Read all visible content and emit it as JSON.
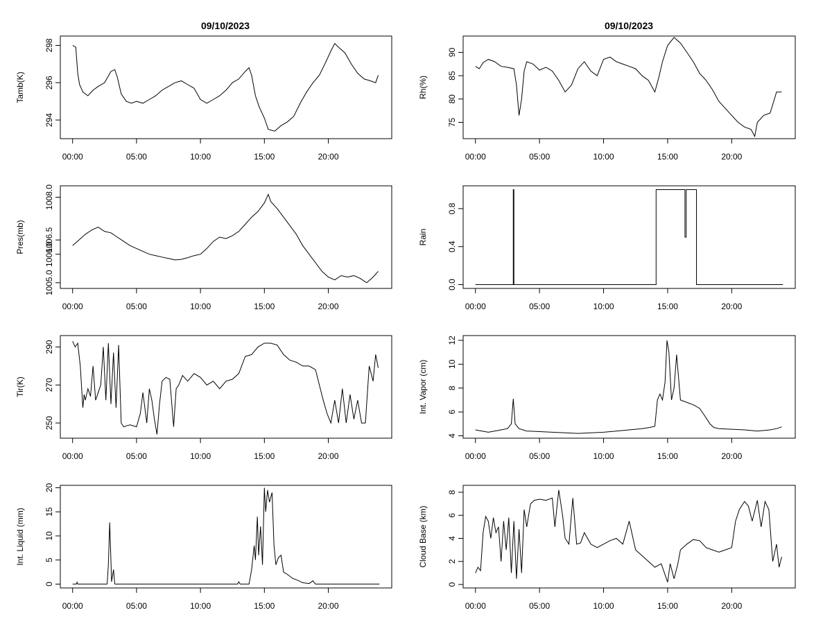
{
  "chart_data": [
    {
      "type": "line",
      "title": "09/10/2023",
      "ylabel": "Tamb(K)",
      "xlim": [
        0,
        24
      ],
      "ylim": [
        293,
        298.5
      ],
      "x_ticks": [
        "00:00",
        "05:00",
        "10:00",
        "15:00",
        "20:00"
      ],
      "y_ticks": [
        "294",
        "296",
        "298"
      ],
      "series": [
        {
          "x": [
            0.0,
            0.25,
            0.4,
            0.55,
            0.8,
            1.2,
            1.6,
            2.0,
            2.5,
            3.0,
            3.3,
            3.5,
            3.8,
            4.2,
            4.6,
            5.0,
            5.5,
            6.0,
            6.5,
            7.0,
            7.5,
            8.0,
            8.5,
            9.0,
            9.5,
            10.0,
            10.5,
            11.0,
            11.5,
            12.0,
            12.5,
            13.0,
            13.5,
            13.8,
            14.0,
            14.3,
            14.6,
            15.0,
            15.3,
            15.8,
            16.3,
            16.8,
            17.3,
            17.8,
            18.3,
            18.8,
            19.3,
            19.8,
            20.2,
            20.5,
            20.8,
            21.3,
            21.8,
            22.3,
            22.8,
            23.3,
            23.7,
            23.9
          ],
          "y": [
            298.0,
            297.9,
            296.5,
            295.9,
            295.5,
            295.3,
            295.6,
            295.8,
            296.0,
            296.6,
            296.7,
            296.3,
            295.4,
            295.0,
            294.9,
            295.0,
            294.9,
            295.1,
            295.3,
            295.6,
            295.8,
            296.0,
            296.1,
            295.9,
            295.7,
            295.1,
            294.9,
            295.1,
            295.3,
            295.6,
            296.0,
            296.2,
            296.6,
            296.8,
            296.4,
            295.3,
            294.7,
            294.1,
            293.5,
            293.4,
            293.7,
            293.9,
            294.2,
            294.9,
            295.5,
            296.0,
            296.4,
            297.1,
            297.7,
            298.1,
            297.9,
            297.6,
            297.0,
            296.5,
            296.2,
            296.1,
            296.0,
            296.4
          ]
        }
      ]
    },
    {
      "type": "line",
      "title": "09/10/2023",
      "ylabel": "Rh(%)",
      "xlim": [
        0,
        24
      ],
      "ylim": [
        71.5,
        93.5
      ],
      "x_ticks": [
        "00:00",
        "05:00",
        "10:00",
        "15:00",
        "20:00"
      ],
      "y_ticks": [
        "75",
        "80",
        "85",
        "90"
      ],
      "series": [
        {
          "x": [
            0.0,
            0.3,
            0.6,
            1.0,
            1.5,
            2.0,
            2.5,
            3.0,
            3.2,
            3.4,
            3.6,
            3.8,
            4.0,
            4.5,
            5.0,
            5.5,
            6.0,
            6.5,
            7.0,
            7.5,
            8.0,
            8.5,
            9.0,
            9.5,
            10.0,
            10.5,
            11.0,
            11.5,
            12.0,
            12.5,
            13.0,
            13.5,
            14.0,
            14.3,
            14.6,
            15.0,
            15.5,
            16.0,
            16.5,
            17.0,
            17.5,
            18.0,
            18.5,
            19.0,
            19.5,
            20.0,
            20.5,
            21.0,
            21.5,
            21.8,
            22.0,
            22.5,
            23.0,
            23.5,
            23.9
          ],
          "y": [
            87.0,
            86.5,
            87.8,
            88.5,
            88.0,
            87.0,
            86.8,
            86.5,
            83.0,
            76.5,
            80.0,
            86.0,
            88.0,
            87.5,
            86.2,
            86.8,
            86.0,
            84.0,
            81.5,
            83.0,
            86.5,
            88.0,
            86.0,
            85.0,
            88.5,
            89.0,
            88.0,
            87.5,
            87.0,
            86.5,
            85.0,
            84.0,
            81.5,
            84.5,
            88.0,
            91.5,
            93.2,
            92.0,
            90.0,
            88.0,
            85.5,
            84.0,
            82.0,
            79.5,
            78.0,
            76.5,
            75.0,
            74.0,
            73.5,
            72.0,
            75.0,
            76.5,
            77.0,
            81.5,
            81.5
          ]
        }
      ]
    },
    {
      "type": "line",
      "ylabel": "Pres(mb)",
      "xlim": [
        0,
        24
      ],
      "ylim": [
        1004.8,
        1008.4
      ],
      "x_ticks": [
        "00:00",
        "05:00",
        "10:00",
        "15:00",
        "20:00"
      ],
      "y_ticks": [
        "1005.0",
        "1006.0",
        "1006.5",
        "1008.0"
      ],
      "series": [
        {
          "x": [
            0.0,
            0.5,
            1.0,
            1.5,
            2.0,
            2.5,
            3.0,
            3.5,
            4.0,
            4.5,
            5.0,
            5.5,
            6.0,
            6.5,
            7.0,
            7.5,
            8.0,
            8.5,
            9.0,
            9.5,
            10.0,
            10.5,
            11.0,
            11.5,
            12.0,
            12.5,
            13.0,
            13.5,
            14.0,
            14.5,
            15.0,
            15.3,
            15.5,
            16.0,
            16.5,
            17.0,
            17.5,
            18.0,
            18.5,
            19.0,
            19.5,
            20.0,
            20.5,
            21.0,
            21.5,
            22.0,
            22.5,
            23.0,
            23.5,
            23.9
          ],
          "y": [
            1006.3,
            1006.5,
            1006.7,
            1006.85,
            1006.95,
            1006.8,
            1006.75,
            1006.6,
            1006.45,
            1006.3,
            1006.2,
            1006.1,
            1006.0,
            1005.95,
            1005.9,
            1005.85,
            1005.8,
            1005.82,
            1005.88,
            1005.95,
            1006.0,
            1006.2,
            1006.45,
            1006.6,
            1006.55,
            1006.65,
            1006.8,
            1007.05,
            1007.3,
            1007.5,
            1007.8,
            1008.1,
            1007.85,
            1007.6,
            1007.3,
            1007.0,
            1006.7,
            1006.3,
            1006.0,
            1005.7,
            1005.4,
            1005.2,
            1005.1,
            1005.25,
            1005.2,
            1005.25,
            1005.15,
            1005.0,
            1005.2,
            1005.4
          ]
        }
      ]
    },
    {
      "type": "line",
      "ylabel": "Rain",
      "xlim": [
        0,
        24
      ],
      "ylim": [
        -0.04,
        1.04
      ],
      "x_ticks": [
        "00:00",
        "05:00",
        "10:00",
        "15:00",
        "20:00"
      ],
      "y_ticks": [
        "0.0",
        "0.4",
        "0.8"
      ],
      "series": [
        {
          "x": [
            0.0,
            2.95,
            2.95,
            3.0,
            3.0,
            14.1,
            14.1,
            16.35,
            16.35,
            16.45,
            16.45,
            17.25,
            17.25,
            24.0
          ],
          "y": [
            0,
            0,
            1,
            1,
            0,
            0,
            1,
            1,
            0.5,
            0.5,
            1,
            1,
            0,
            0
          ]
        }
      ]
    },
    {
      "type": "line",
      "ylabel": "Tir(K)",
      "xlim": [
        0,
        24
      ],
      "ylim": [
        242,
        296
      ],
      "x_ticks": [
        "00:00",
        "05:00",
        "10:00",
        "15:00",
        "20:00"
      ],
      "y_ticks": [
        "250",
        "270",
        "290"
      ],
      "series": [
        {
          "x": [
            0.0,
            0.2,
            0.4,
            0.6,
            0.8,
            0.9,
            1.0,
            1.2,
            1.4,
            1.6,
            1.8,
            2.0,
            2.2,
            2.4,
            2.6,
            2.8,
            3.0,
            3.2,
            3.4,
            3.6,
            3.8,
            4.0,
            4.2,
            4.5,
            5.0,
            5.3,
            5.5,
            5.8,
            6.0,
            6.2,
            6.4,
            6.6,
            6.8,
            7.0,
            7.3,
            7.6,
            7.9,
            8.1,
            8.3,
            8.6,
            9.0,
            9.5,
            10.0,
            10.5,
            11.0,
            11.5,
            12.0,
            12.5,
            13.0,
            13.5,
            14.0,
            14.5,
            15.0,
            15.5,
            16.0,
            16.5,
            17.0,
            17.5,
            18.0,
            18.5,
            19.0,
            19.3,
            19.6,
            19.9,
            20.2,
            20.5,
            20.8,
            21.1,
            21.4,
            21.7,
            22.0,
            22.3,
            22.6,
            22.9,
            23.2,
            23.5,
            23.7,
            23.9
          ],
          "y": [
            293,
            290,
            292,
            280,
            258,
            265,
            262,
            268,
            264,
            280,
            262,
            266,
            270,
            290,
            262,
            292,
            260,
            287,
            258,
            291,
            250,
            248,
            248.5,
            249,
            248,
            255,
            266,
            250,
            268,
            262,
            252,
            244,
            260,
            272,
            274,
            273,
            248,
            268,
            270,
            275,
            272,
            276,
            274,
            270,
            272,
            268,
            272,
            273,
            276,
            285,
            286,
            290,
            292,
            292,
            291,
            286,
            283,
            282,
            280,
            280,
            278,
            270,
            262,
            255,
            250,
            262,
            250,
            268,
            250,
            265,
            252,
            262,
            250,
            250,
            280,
            272,
            286,
            279
          ]
        }
      ]
    },
    {
      "type": "line",
      "ylabel": "Int. Vapor (cm)",
      "xlim": [
        0,
        24
      ],
      "ylim": [
        3.8,
        12.4
      ],
      "x_ticks": [
        "00:00",
        "05:00",
        "10:00",
        "15:00",
        "20:00"
      ],
      "y_ticks": [
        "4",
        "6",
        "8",
        "10",
        "12"
      ],
      "series": [
        {
          "x": [
            0.0,
            0.5,
            1.0,
            1.5,
            2.0,
            2.5,
            2.8,
            2.95,
            3.1,
            3.4,
            4.0,
            5.0,
            6.0,
            7.0,
            8.0,
            9.0,
            10.0,
            11.0,
            12.0,
            13.0,
            13.6,
            14.0,
            14.2,
            14.4,
            14.6,
            14.8,
            14.95,
            15.1,
            15.3,
            15.5,
            15.7,
            16.0,
            16.5,
            17.0,
            17.5,
            18.0,
            18.3,
            18.6,
            19.0,
            20.0,
            21.0,
            22.0,
            23.0,
            23.5,
            23.9
          ],
          "y": [
            4.5,
            4.4,
            4.3,
            4.4,
            4.5,
            4.6,
            5.0,
            7.1,
            5.0,
            4.6,
            4.4,
            4.35,
            4.3,
            4.25,
            4.2,
            4.25,
            4.3,
            4.4,
            4.5,
            4.6,
            4.7,
            4.8,
            7.0,
            7.5,
            7.0,
            8.5,
            12.0,
            11.0,
            7.0,
            8.0,
            10.8,
            7.0,
            6.8,
            6.6,
            6.3,
            5.5,
            5.0,
            4.7,
            4.6,
            4.55,
            4.5,
            4.4,
            4.5,
            4.6,
            4.75
          ]
        }
      ]
    },
    {
      "type": "line",
      "ylabel": "Int. Liquid (mm)",
      "xlim": [
        0,
        24
      ],
      "ylim": [
        -0.8,
        20.5
      ],
      "x_ticks": [
        "00:00",
        "05:00",
        "10:00",
        "15:00",
        "20:00"
      ],
      "y_ticks": [
        "0",
        "5",
        "10",
        "15",
        "20"
      ],
      "series": [
        {
          "x": [
            0.0,
            0.3,
            0.35,
            0.4,
            2.7,
            2.8,
            2.9,
            3.0,
            3.05,
            3.2,
            3.3,
            3.4,
            12.9,
            13.0,
            13.1,
            13.8,
            14.0,
            14.2,
            14.3,
            14.45,
            14.55,
            14.7,
            14.85,
            15.0,
            15.1,
            15.25,
            15.4,
            15.6,
            15.75,
            15.9,
            16.1,
            16.3,
            16.5,
            16.8,
            17.2,
            17.6,
            18.0,
            18.5,
            18.8,
            18.9,
            19.0,
            24.0
          ],
          "y": [
            0,
            0,
            0.4,
            0,
            0,
            4.0,
            12.8,
            5.0,
            0.5,
            3.0,
            0,
            0,
            0,
            0.5,
            0,
            0,
            3.0,
            8.0,
            5.0,
            14.0,
            6.0,
            12.0,
            4.0,
            20.0,
            15.0,
            19.5,
            17.0,
            19.0,
            8.0,
            4.0,
            5.5,
            6.0,
            2.5,
            2.0,
            1.2,
            0.8,
            0.3,
            0.1,
            0.7,
            0.3,
            0,
            0
          ]
        }
      ]
    },
    {
      "type": "line",
      "ylabel": "Cloud Base (km)",
      "xlim": [
        0,
        24
      ],
      "ylim": [
        -0.3,
        8.6
      ],
      "x_ticks": [
        "00:00",
        "05:00",
        "10:00",
        "15:00",
        "20:00"
      ],
      "y_ticks": [
        "0",
        "2",
        "4",
        "6",
        "8"
      ],
      "series": [
        {
          "x": [
            0.0,
            0.2,
            0.4,
            0.6,
            0.8,
            1.0,
            1.2,
            1.4,
            1.6,
            1.8,
            2.0,
            2.2,
            2.4,
            2.6,
            2.8,
            3.0,
            3.2,
            3.4,
            3.6,
            3.8,
            4.0,
            4.3,
            4.6,
            5.0,
            5.5,
            6.0,
            6.2,
            6.5,
            6.8,
            7.0,
            7.3,
            7.6,
            7.9,
            8.2,
            8.5,
            9.0,
            9.5,
            10.0,
            10.5,
            11.0,
            11.5,
            12.0,
            12.5,
            13.0,
            13.5,
            14.0,
            14.5,
            15.0,
            15.2,
            15.5,
            15.8,
            16.0,
            16.5,
            17.0,
            17.5,
            18.0,
            18.5,
            19.0,
            19.5,
            20.0,
            20.3,
            20.6,
            21.0,
            21.3,
            21.6,
            22.0,
            22.3,
            22.6,
            22.9,
            23.2,
            23.5,
            23.7,
            23.9
          ],
          "y": [
            1.0,
            1.5,
            1.2,
            4.5,
            5.9,
            5.5,
            4.0,
            5.8,
            4.5,
            5.0,
            2.0,
            5.5,
            3.0,
            5.8,
            1.0,
            5.5,
            0.5,
            4.8,
            1.0,
            6.5,
            5.0,
            7.0,
            7.3,
            7.4,
            7.3,
            7.5,
            5.0,
            8.2,
            6.0,
            4.0,
            3.5,
            7.5,
            3.5,
            3.6,
            4.5,
            3.5,
            3.2,
            3.5,
            3.8,
            4.0,
            3.5,
            5.5,
            3.0,
            2.5,
            2.0,
            1.5,
            1.8,
            0.2,
            1.8,
            0.5,
            1.8,
            3.0,
            3.5,
            3.9,
            3.8,
            3.2,
            3.0,
            2.8,
            3.0,
            3.2,
            5.5,
            6.5,
            7.2,
            6.8,
            5.5,
            7.3,
            5.0,
            7.2,
            6.5,
            2.0,
            3.5,
            1.5,
            2.4
          ]
        }
      ]
    }
  ]
}
